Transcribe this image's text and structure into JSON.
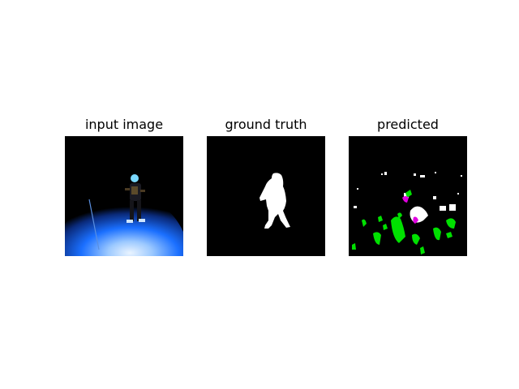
{
  "panels": [
    {
      "title": "input image"
    },
    {
      "title": "ground truth"
    },
    {
      "title": "predicted"
    }
  ],
  "colors": {
    "background": "#ffffff",
    "panel_fill": "#000000",
    "mask_foreground": "#ffffff",
    "false_positive": "#00ff00",
    "false_negative": "#ff00ff",
    "snow_blue": "#1a7bff"
  }
}
